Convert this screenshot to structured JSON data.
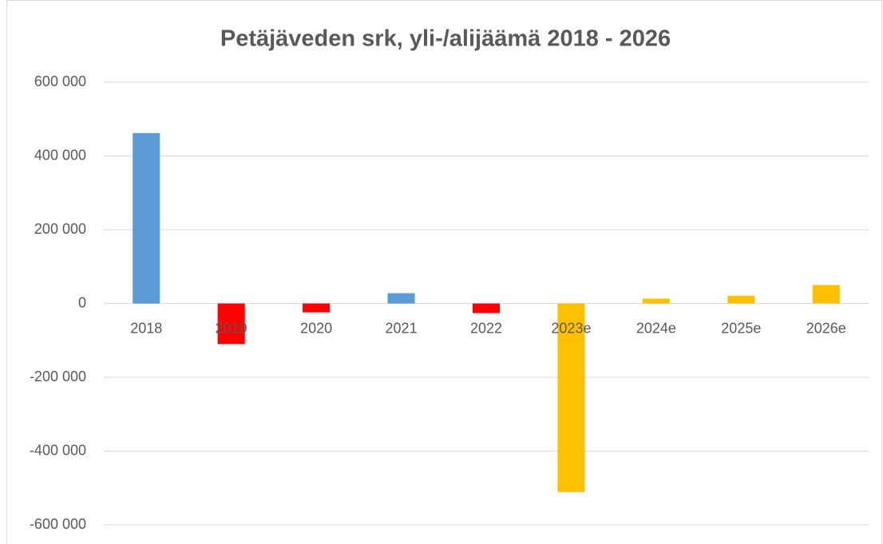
{
  "chart_data": {
    "type": "bar",
    "title": "Petäjäveden srk, yli-/alijäämä 2018 - 2026",
    "categories": [
      "2018",
      "2019",
      "2020",
      "2021",
      "2022",
      "2023e",
      "2024e",
      "2025e",
      "2026e"
    ],
    "values": [
      462000,
      -110000,
      -24000,
      28000,
      -26000,
      -511000,
      13000,
      21000,
      50000
    ],
    "colors": [
      "#5b9bd5",
      "#ff0000",
      "#ff0000",
      "#5b9bd5",
      "#ff0000",
      "#ffc000",
      "#ffc000",
      "#ffc000",
      "#ffc000"
    ],
    "ylim": [
      -600000,
      600000
    ],
    "yticks": [
      {
        "value": -600000,
        "label": "-600 000"
      },
      {
        "value": -400000,
        "label": "-400 000"
      },
      {
        "value": -200000,
        "label": "-200 000"
      },
      0,
      {
        "value": 200000,
        "label": "200 000"
      },
      {
        "value": 400000,
        "label": "400 000"
      },
      {
        "value": 600000,
        "label": "600 000"
      }
    ],
    "grid": true
  }
}
